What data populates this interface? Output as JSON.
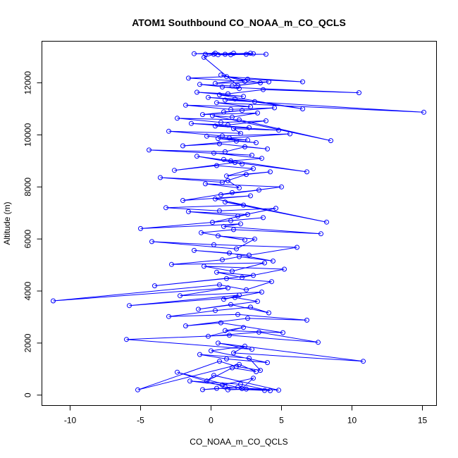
{
  "chart_data": {
    "type": "line",
    "title": "ATOM1 Southbound CO_NOAA_m_CO_QCLS",
    "xlabel": "CO_NOAA_m_CO_QCLS",
    "ylabel": "Altitude (m)",
    "xlim": [
      -12,
      16
    ],
    "ylim": [
      -400,
      13600
    ],
    "x_ticks": [
      -10,
      -5,
      0,
      5,
      10,
      15
    ],
    "y_ticks": [
      0,
      2000,
      4000,
      6000,
      8000,
      10000,
      12000
    ],
    "x_tick_labels": [
      "-10",
      "-5",
      "0",
      "5",
      "10",
      "15"
    ],
    "y_tick_labels": [
      "0",
      "2000",
      "4000",
      "6000",
      "8000",
      "10000",
      "12000"
    ],
    "grid": false,
    "legend": "none",
    "series_color": "#0000ff",
    "markers": "open-circle",
    "series": [
      {
        "x": [
          1.2,
          2.5,
          3.8,
          0.4,
          -0.6,
          1.9,
          4.2,
          2.1,
          -1.5,
          0.8,
          3.0,
          2.2,
          -2.4,
          1.0,
          4.8,
          0.2,
          -0.3,
          1.5,
          3.2,
          2.0,
          -5.2,
          0.6,
          1.8,
          3.5,
          2.7,
          -0.8,
          1.1,
          4.0,
          0.0,
          2.4,
          1.6,
          10.8,
          0.5,
          2.9,
          -6.0,
          1.3,
          7.6,
          3.4,
          -0.2,
          2.3,
          1.0,
          5.1,
          0.7,
          -1.8,
          2.6,
          6.8,
          1.9,
          -3.0,
          0.3,
          2.8,
          4.1,
          1.4,
          -0.9,
          3.3,
          1.7,
          -5.8,
          2.0,
          0.9,
          3.6,
          -2.2,
          1.2,
          -11.2,
          0.6,
          2.5,
          4.3,
          1.1,
          -4.0,
          3.0,
          0.4,
          2.2,
          5.2,
          -0.5,
          1.5,
          3.8,
          -2.8,
          0.8,
          2.0,
          4.4,
          1.3,
          -1.2,
          2.7,
          6.1,
          0.2,
          -4.2,
          1.8,
          3.1,
          0.5,
          2.4,
          -0.7,
          1.6,
          7.8,
          0.9,
          2.1,
          -5.0,
          1.4,
          3.7,
          0.1,
          2.6,
          -1.6,
          1.9,
          4.6,
          0.6,
          -3.2,
          2.3,
          1.0,
          8.2,
          0.3,
          2.8,
          -2.0,
          1.5,
          3.4,
          0.7,
          5.0,
          -0.4,
          2.0,
          1.2,
          -3.6,
          0.8,
          2.5,
          4.2,
          1.1,
          3.0,
          0.4,
          -2.6,
          1.7,
          6.8,
          0.9,
          2.2,
          -1.0,
          1.4,
          3.6,
          0.2,
          2.9,
          -4.4,
          1.0,
          2.4,
          4.0,
          0.6,
          -2.0,
          1.8,
          3.2,
          0.5,
          2.6,
          -0.3,
          1.3,
          5.6,
          0.8,
          -3.0,
          2.1,
          1.6,
          4.8,
          0.3,
          2.7,
          -1.4,
          1.2,
          3.9,
          0.7,
          -2.4,
          2.0,
          8.5,
          0.1,
          1.5,
          3.3,
          -0.6,
          2.2,
          0.9,
          4.5,
          1.4,
          -1.8,
          2.8,
          0.4,
          15.1,
          1.0,
          3.1,
          -0.2,
          1.7,
          6.5,
          0.6,
          2.3,
          -1.0,
          1.2,
          3.7,
          10.5,
          0.8,
          2.0,
          -0.8,
          1.5,
          4.1,
          0.3,
          2.6,
          6.5,
          1.1,
          -1.6,
          2.4,
          0.7,
          3.5,
          1.9,
          -0.5,
          0.2,
          2.8,
          1.4,
          3.0,
          -0.4,
          1.6,
          2.5,
          0.5,
          3.9,
          -1.2,
          0.3,
          1.0
        ],
        "y": [
          200,
          230,
          180,
          260,
          210,
          300,
          170,
          420,
          540,
          390,
          650,
          250,
          880,
          310,
          190,
          760,
          540,
          1050,
          900,
          1180,
          200,
          1300,
          1100,
          950,
          1420,
          1560,
          1390,
          1250,
          1700,
          1880,
          1620,
          1300,
          2000,
          1760,
          2140,
          2300,
          2030,
          2420,
          2260,
          2600,
          2480,
          2400,
          2780,
          2660,
          2950,
          2880,
          3100,
          3020,
          3250,
          3380,
          3160,
          3480,
          3300,
          3600,
          3750,
          3440,
          3840,
          3680,
          3960,
          3820,
          4120,
          3620,
          4240,
          4050,
          4360,
          4480,
          4200,
          4600,
          4720,
          4520,
          4840,
          4950,
          4760,
          5080,
          5020,
          5200,
          5320,
          5150,
          5460,
          5560,
          5380,
          5680,
          5780,
          5900,
          5620,
          6000,
          6120,
          5960,
          6240,
          6360,
          6200,
          6480,
          6580,
          6400,
          6700,
          6820,
          6640,
          6940,
          7050,
          6880,
          7180,
          7080,
          7200,
          7300,
          7420,
          6650,
          7540,
          7660,
          7480,
          7780,
          7880,
          7700,
          8000,
          8120,
          7960,
          8240,
          8360,
          8180,
          8480,
          8580,
          8420,
          8700,
          8820,
          8640,
          8940,
          8580,
          9060,
          8880,
          9180,
          9000,
          9100,
          9300,
          9220,
          9420,
          9350,
          9540,
          9460,
          9660,
          9580,
          9760,
          9700,
          9860,
          9800,
          9950,
          9880,
          10040,
          9960,
          10140,
          10060,
          10240,
          10180,
          10340,
          10280,
          10440,
          10380,
          10540,
          10480,
          10640,
          10580,
          9780,
          10740,
          10680,
          10840,
          10780,
          10940,
          10880,
          11040,
          10980,
          11140,
          11080,
          11240,
          10870,
          11340,
          11280,
          11440,
          11380,
          11000,
          11540,
          11480,
          11640,
          11580,
          11740,
          11620,
          11840,
          11780,
          11940,
          11880,
          12040,
          11980,
          12140,
          12040,
          12240,
          12180,
          12060,
          12300,
          12000,
          11900,
          12980,
          13100,
          13140,
          13080,
          13120,
          13100,
          13140,
          13100,
          13080,
          13100,
          13120,
          13140,
          13100
        ]
      }
    ]
  }
}
